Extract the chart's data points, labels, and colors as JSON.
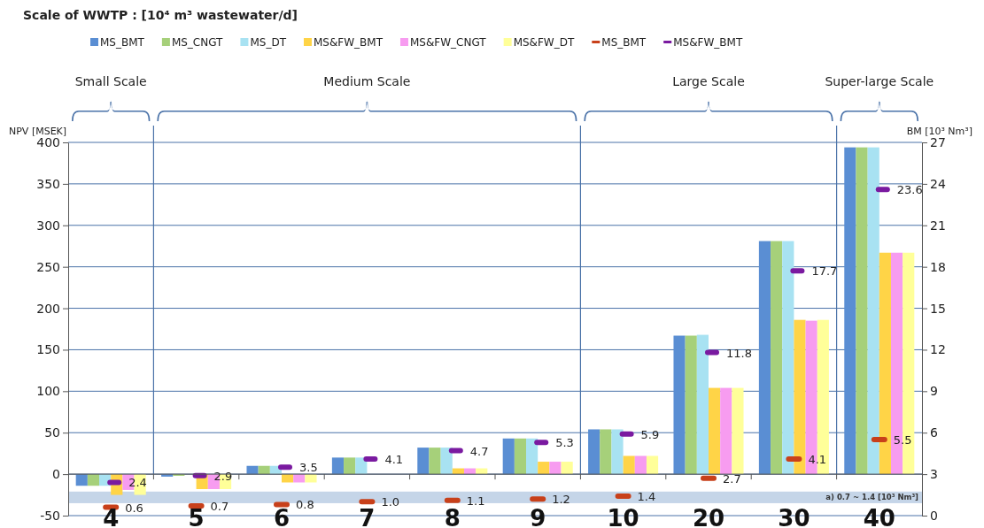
{
  "chart_data": {
    "type": "bar",
    "title": "Scale of WWTP : [10⁴ m³ wastewater/d]",
    "ylabel": "NPV [MSEK]",
    "y2label": "BM [10³ Nm³]",
    "categories": [
      "4",
      "5",
      "6",
      "7",
      "8",
      "9",
      "10",
      "20",
      "30",
      "40"
    ],
    "series": [
      {
        "name": "MS_BMT",
        "color": "#5a8ed3",
        "values": [
          -14,
          -3,
          10,
          20,
          32,
          43,
          54,
          167,
          281,
          394
        ]
      },
      {
        "name": "MS_CNGT",
        "color": "#a6d07a",
        "values": [
          -14,
          -2,
          10,
          20,
          32,
          43,
          54,
          167,
          281,
          394
        ]
      },
      {
        "name": "MS_DT",
        "color": "#a8e2f2",
        "values": [
          -14,
          null,
          10,
          20,
          32,
          43,
          54,
          168,
          281,
          394
        ]
      },
      {
        "name": "MS&FW_BMT",
        "color": "#ffd447",
        "values": [
          -25,
          -18,
          -10,
          0,
          7,
          15,
          22,
          104,
          186,
          267
        ]
      },
      {
        "name": "MS&FW_CNGT",
        "color": "#f79cf0",
        "values": [
          -19,
          -18,
          -10,
          0,
          7,
          15,
          22,
          104,
          185,
          267
        ]
      },
      {
        "name": "MS&FW_DT",
        "color": "#ffff99",
        "values": [
          -25,
          -18,
          -10,
          0,
          7,
          15,
          22,
          104,
          186,
          267
        ]
      },
      {
        "name": "MS_BMT",
        "type": "scatter",
        "axis": "y2",
        "color": "#c8401a",
        "values": [
          0.6,
          0.7,
          0.8,
          1.0,
          1.1,
          1.2,
          1.4,
          2.7,
          4.1,
          5.5
        ],
        "value_labels": [
          "0.6",
          "0.7",
          "0.8",
          "1.0",
          "1.1",
          "1.2",
          "1.4",
          "2.7",
          "4.1",
          "5.5"
        ]
      },
      {
        "name": "MS&FW_BMT",
        "type": "scatter",
        "axis": "y2",
        "color": "#7a1aa0",
        "values": [
          2.4,
          2.9,
          3.5,
          4.1,
          4.7,
          5.3,
          5.9,
          11.8,
          17.7,
          23.6
        ],
        "value_labels": [
          "2.4",
          "2.9",
          "3.5",
          "4.1",
          "4.7",
          "5.3",
          "5.9",
          "11.8",
          "17.7",
          "23.6"
        ]
      }
    ],
    "ylim": [
      -50,
      400
    ],
    "yticks": [
      -50,
      0,
      50,
      100,
      150,
      200,
      250,
      300,
      350,
      400
    ],
    "y2lim": [
      0,
      27
    ],
    "y2ticks": [
      0,
      3,
      6,
      9,
      12,
      15,
      18,
      21,
      24,
      27
    ],
    "grid": "y",
    "legend": "top",
    "annotations": [
      "Small Scale",
      "Medium Scale",
      "Large Scale",
      "Super-large Scale"
    ],
    "bands": [
      {
        "axis": "y",
        "from": -35,
        "to": -21,
        "label": "a) 0.7 ~ 1.4 [10³ Nm³]",
        "color": "#c5d5e8"
      }
    ]
  }
}
